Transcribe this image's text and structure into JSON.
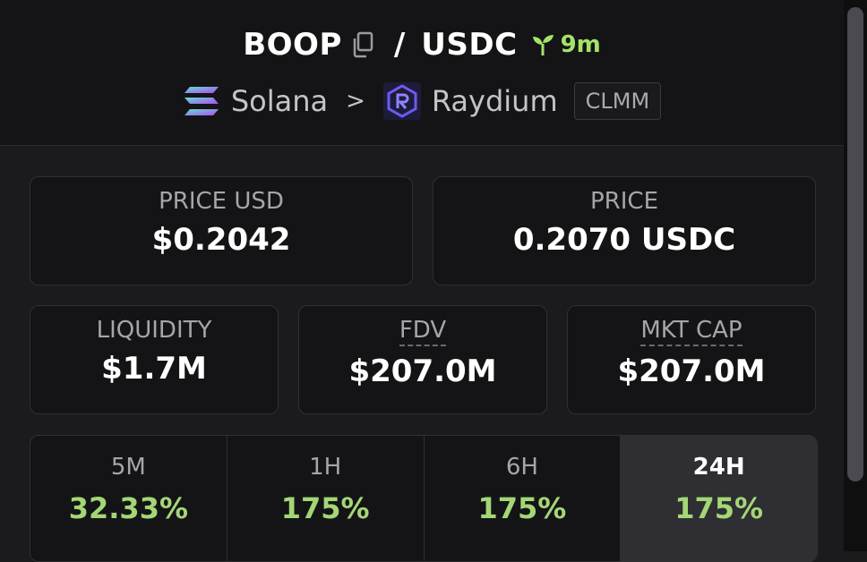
{
  "header": {
    "base": "BOOP",
    "quote": "USDC",
    "slash": "/",
    "age": "9m",
    "chain": "Solana",
    "separator": ">",
    "dex": "Raydium",
    "pool_type": "CLMM"
  },
  "stats": {
    "price_usd": {
      "label": "PRICE USD",
      "value": "$0.2042"
    },
    "price": {
      "label": "PRICE",
      "value": "0.2070 USDC"
    },
    "liquidity": {
      "label": "LIQUIDITY",
      "value": "$1.7M"
    },
    "fdv": {
      "label": "FDV",
      "value": "$207.0M"
    },
    "mkt_cap": {
      "label": "MKT CAP",
      "value": "$207.0M"
    }
  },
  "changes": [
    {
      "label": "5M",
      "value": "32.33%"
    },
    {
      "label": "1H",
      "value": "175%"
    },
    {
      "label": "6H",
      "value": "175%"
    },
    {
      "label": "24H",
      "value": "175%"
    }
  ],
  "colors": {
    "positive": "#a4d676",
    "age": "#a4e36a",
    "background": "#1b1b1e"
  }
}
